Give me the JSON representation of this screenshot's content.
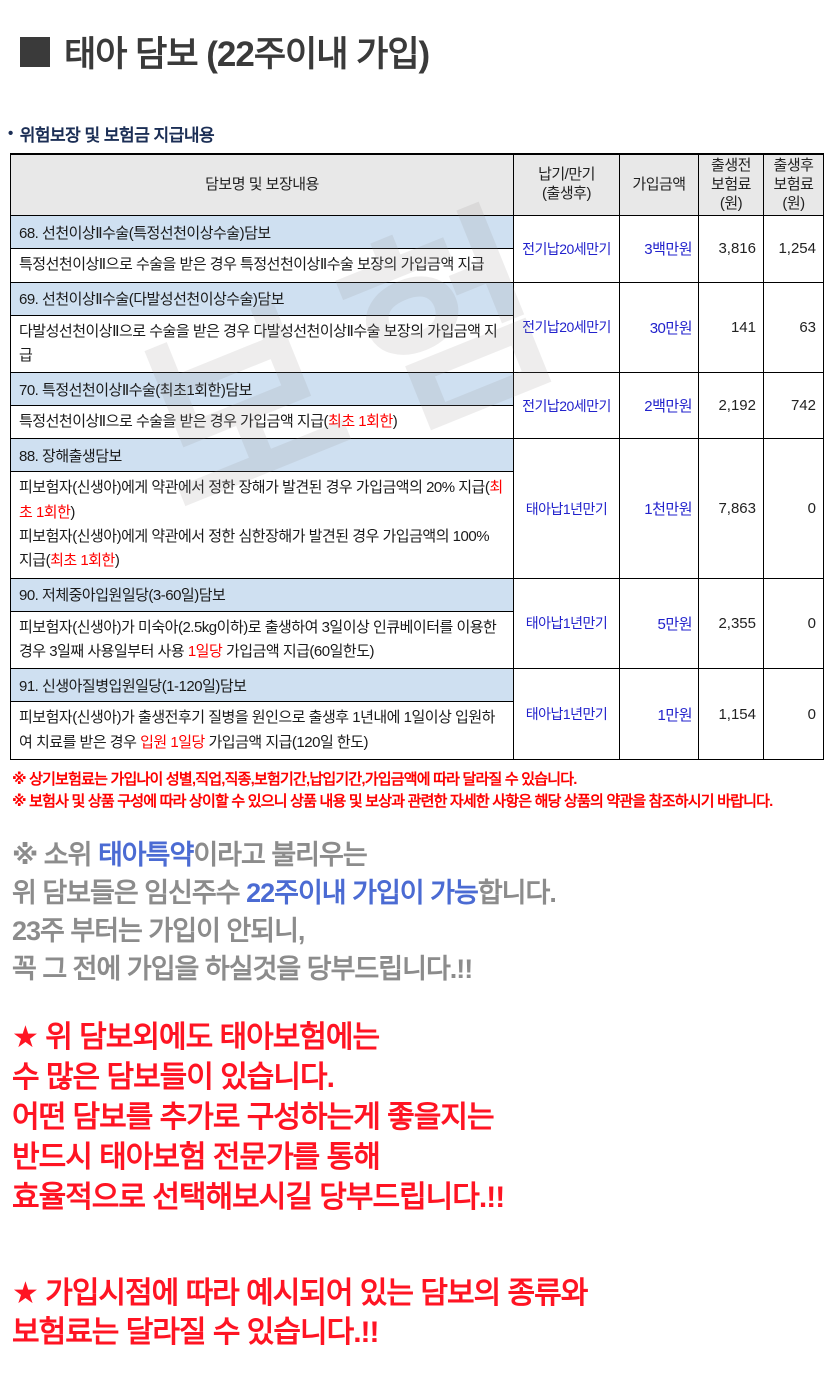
{
  "header": {
    "marker": "■",
    "title": "태아 담보 (22주이내 가입)",
    "bullet": "•",
    "subtitle": "위험보장 및 보험금 지급내용"
  },
  "watermark": {
    "text": "보험"
  },
  "table": {
    "headers": [
      "담보명 및 보장내용",
      "납기/만기\n(출생후)",
      "가입금액",
      "출생전\n보험료(원)",
      "출생후\n보험료(원)"
    ],
    "rows": [
      {
        "title": "68. 선천이상Ⅱ수술(특정선천이상수술)담보",
        "desc": [
          {
            "t": "특정선천이상Ⅱ으로 수술을 받은 경우 특정선천이상Ⅱ수술 보장의 가입금액 지급"
          }
        ],
        "term": "전기납20세만기",
        "amount": "3백만원",
        "premium_before": "3,816",
        "premium_after": "1,254"
      },
      {
        "title": "69. 선천이상Ⅱ수술(다발성선천이상수술)담보",
        "desc": [
          {
            "t": "다발성선천이상Ⅱ으로 수술을 받은 경우 다발성선천이상Ⅱ수술 보장의 가입금액 지급"
          }
        ],
        "term": "전기납20세만기",
        "amount": "30만원",
        "premium_before": "141",
        "premium_after": "63"
      },
      {
        "title": "70. 특정선천이상Ⅱ수술(최초1회한)담보",
        "desc": [
          {
            "t": "특정선천이상Ⅱ으로 수술을 받은 경우 가입금액 지급("
          },
          {
            "t": "최초 1회한",
            "c": "r"
          },
          {
            "t": ")"
          }
        ],
        "term": "전기납20세만기",
        "amount": "2백만원",
        "premium_before": "2,192",
        "premium_after": "742"
      },
      {
        "title": "88. 장해출생담보",
        "desc": [
          {
            "t": "피보험자(신생아)에게 약관에서 정한 장해가 발견된 경우 가입금액의 20% 지급("
          },
          {
            "t": "최초 1회한",
            "c": "r"
          },
          {
            "t": ")"
          },
          {
            "br": true
          },
          {
            "t": "피보험자(신생아)에게 약관에서 정한 심한장해가 발견된 경우 가입금액의 100% 지급("
          },
          {
            "t": "최초 1회한",
            "c": "r"
          },
          {
            "t": ")"
          }
        ],
        "term": "태아납1년만기",
        "amount": "1천만원",
        "premium_before": "7,863",
        "premium_after": "0"
      },
      {
        "title": "90. 저체중아입원일당(3-60일)담보",
        "desc": [
          {
            "t": "피보험자(신생아)가 미숙아(2.5kg이하)로 출생하여 3일이상 인큐베이터를 이용한 경우 3일째 사용일부터 사용 "
          },
          {
            "t": "1일당",
            "c": "r"
          },
          {
            "t": " 가입금액 지급(60일한도)"
          }
        ],
        "term": "태아납1년만기",
        "amount": "5만원",
        "premium_before": "2,355",
        "premium_after": "0"
      },
      {
        "title": "91. 신생아질병입원일당(1-120일)담보",
        "desc": [
          {
            "t": "피보험자(신생아)가 출생전후기 질병을 원인으로 출생후 1년내에 1일이상 입원하여 치료를 받은 경우 "
          },
          {
            "t": "입원 1일당",
            "c": "r"
          },
          {
            "t": " 가입금액 지급(120일 한도)"
          }
        ],
        "term": "태아납1년만기",
        "amount": "1만원",
        "premium_before": "1,154",
        "premium_after": "0"
      }
    ]
  },
  "notes": [
    "※ 상기보험료는 가입나이 성별,직업,직종,보험기간,납입기간,가입금액에 따라 달라질 수 있습니다.",
    "※ 보험사 및 상품 구성에 따라 상이할 수 있으니 상품 내용 및 보상과 관련한 자세한 사항은 해당 상품의 약관을 참조하시기 바랍니다."
  ],
  "notice": {
    "lines": [
      [
        {
          "t": "※ 소위 "
        },
        {
          "t": "태아특약",
          "c": "b"
        },
        {
          "t": "이라고 불리우는"
        }
      ],
      [
        {
          "t": "위 담보들은 임신주수 "
        },
        {
          "t": "22주이내 가입이 가능",
          "c": "b"
        },
        {
          "t": "합니다."
        }
      ],
      [
        {
          "t": "23주 부터는 가입이 안되니,"
        }
      ],
      [
        {
          "t": "꼭 그 전에 가입을 하실것을 당부드립니다.!!"
        }
      ]
    ]
  },
  "warnings": [
    {
      "lines": [
        "★ 위 담보외에도 태아보험에는",
        "수 많은 담보들이 있습니다.",
        "어떤 담보를 추가로 구성하는게 좋을지는",
        "반드시 태아보험 전문가를 통해",
        "효율적으로 선택해보시길 당부드립니다.!!"
      ]
    },
    {
      "lines": [
        "★ 가입시점에 따라 예시되어 있는 담보의 종류와",
        "보험료는 달라질 수 있습니다.!!"
      ]
    }
  ],
  "colors": {
    "title_dark": "#3a3a3a",
    "subtitle_navy": "#1b2e55",
    "table_header_bg": "#e8e8e8",
    "row_title_bg": "#cfe0f1",
    "table_blue": "#2222cc",
    "notice_gray": "#8c8c8c",
    "notice_blue": "#4b6bd3",
    "note_red": "#ff0000",
    "warning_red": "#ff1423"
  }
}
